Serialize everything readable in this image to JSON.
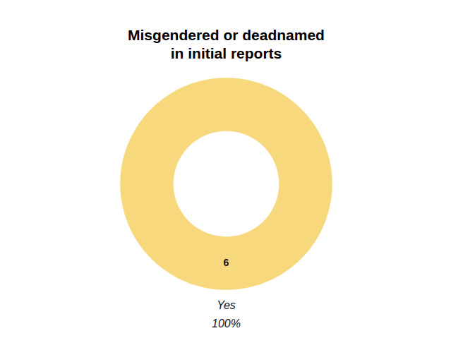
{
  "chart_data": {
    "type": "donut",
    "title": "Misgendered or deadnamed\nin initial reports",
    "categories": [
      "Yes"
    ],
    "values": [
      6
    ],
    "percentages": [
      100
    ],
    "percentage_labels": [
      "100%"
    ],
    "colors": [
      "#f7d87c"
    ],
    "data_labels": true,
    "tick_labels": false
  }
}
